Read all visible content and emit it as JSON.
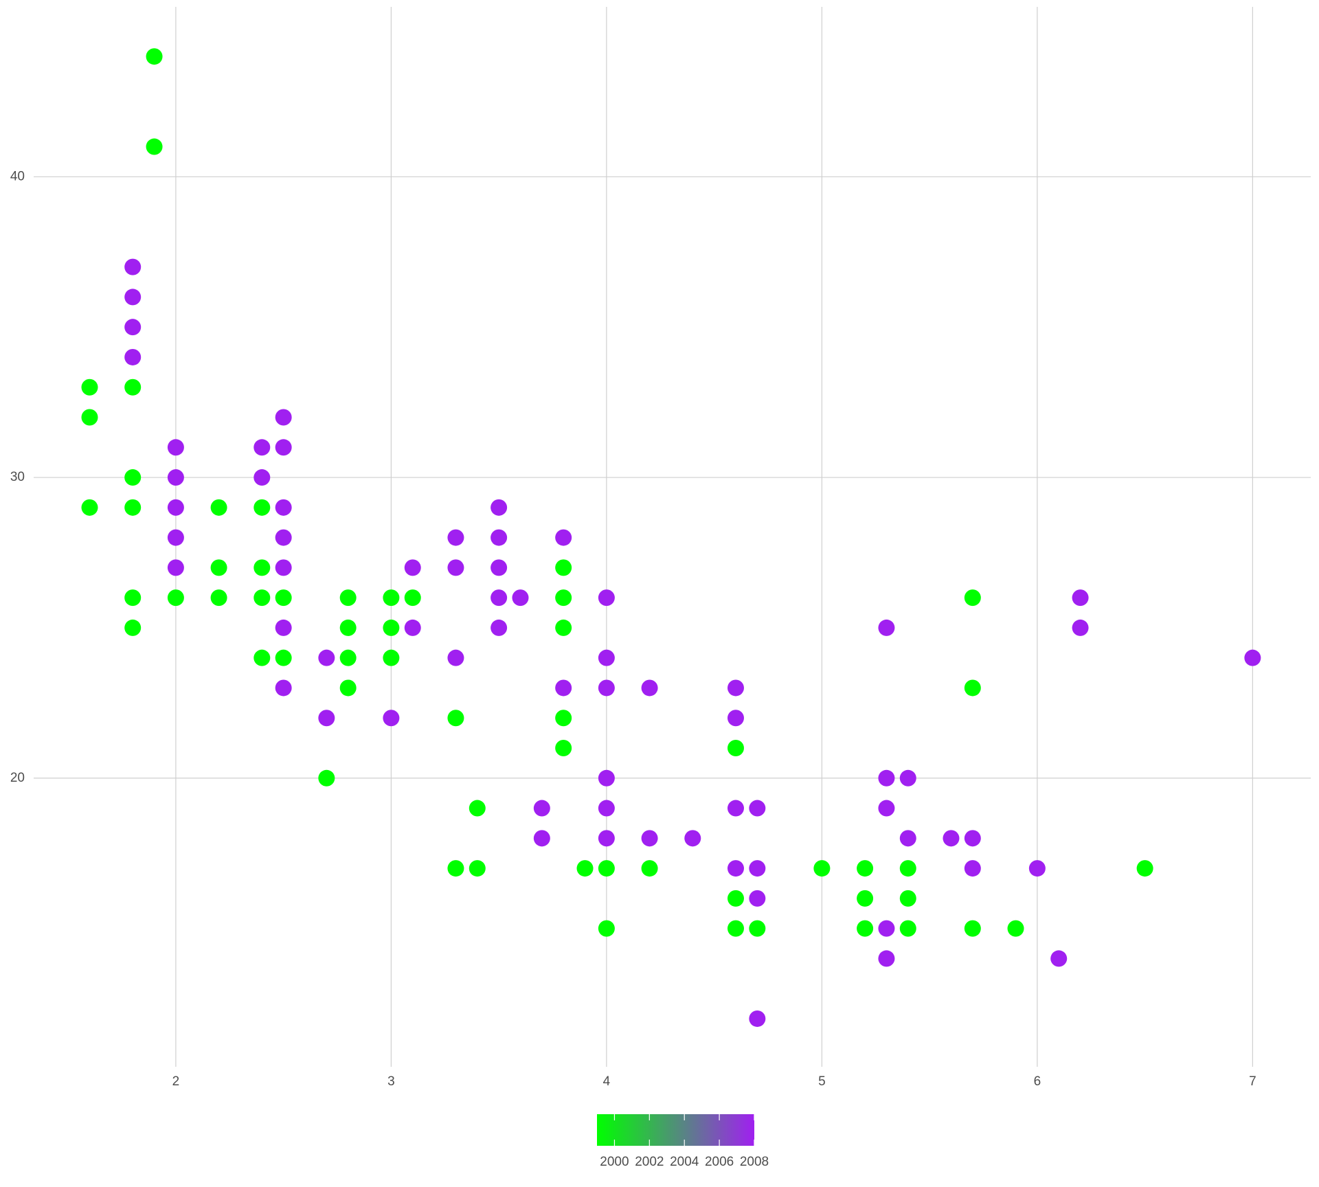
{
  "chart_data": {
    "type": "scatter",
    "x": [
      1.9,
      1.9,
      1.6,
      1.6,
      1.6,
      1.8,
      1.8,
      1.8,
      1.8,
      1.8,
      1.8,
      1.8,
      1.8,
      1.8,
      2.0,
      2.0,
      2.0,
      2.0,
      2.0,
      2.0,
      2.2,
      2.2,
      2.2,
      2.4,
      2.4,
      2.4,
      2.4,
      2.4,
      2.4,
      2.5,
      2.5,
      2.5,
      2.5,
      2.5,
      2.5,
      2.5,
      2.5,
      2.5,
      2.7,
      2.7,
      2.7,
      2.8,
      2.8,
      2.8,
      2.8,
      3.0,
      3.0,
      3.0,
      3.0,
      3.1,
      3.1,
      3.1,
      3.3,
      3.3,
      3.3,
      3.3,
      3.3,
      3.4,
      3.4,
      3.5,
      3.5,
      3.5,
      3.5,
      3.5,
      3.6,
      3.7,
      3.7,
      3.8,
      3.8,
      3.8,
      3.8,
      3.8,
      3.8,
      3.8,
      3.9,
      4.0,
      4.0,
      4.0,
      4.0,
      4.0,
      4.0,
      4.0,
      4.0,
      4.2,
      4.2,
      4.2,
      4.4,
      4.6,
      4.6,
      4.6,
      4.6,
      4.6,
      4.6,
      4.6,
      4.7,
      4.7,
      4.7,
      4.7,
      4.7,
      5.0,
      5.2,
      5.2,
      5.2,
      5.3,
      5.3,
      5.3,
      5.3,
      5.3,
      5.4,
      5.4,
      5.4,
      5.4,
      5.4,
      5.6,
      5.7,
      5.7,
      5.7,
      5.7,
      5.7,
      5.9,
      6.0,
      6.1,
      6.2,
      6.2,
      6.5,
      7.0
    ],
    "values": [
      44,
      41,
      33,
      32,
      29,
      33,
      30,
      29,
      26,
      25,
      37,
      36,
      35,
      34,
      31,
      30,
      29,
      28,
      27,
      26,
      29,
      27,
      26,
      31,
      30,
      29,
      27,
      26,
      24,
      32,
      31,
      29,
      28,
      27,
      25,
      23,
      26,
      24,
      24,
      22,
      20,
      26,
      25,
      24,
      23,
      26,
      25,
      24,
      22,
      27,
      25,
      26,
      28,
      27,
      24,
      22,
      17,
      19,
      17,
      29,
      28,
      27,
      26,
      25,
      26,
      19,
      18,
      28,
      23,
      27,
      26,
      25,
      22,
      21,
      17,
      26,
      24,
      23,
      20,
      19,
      18,
      17,
      15,
      23,
      18,
      17,
      18,
      23,
      22,
      19,
      17,
      21,
      16,
      15,
      19,
      17,
      16,
      12,
      15,
      17,
      17,
      16,
      15,
      25,
      20,
      19,
      15,
      14,
      20,
      18,
      17,
      16,
      15,
      18,
      26,
      23,
      15,
      18,
      17,
      15,
      17,
      14,
      26,
      25,
      17,
      24
    ],
    "color_values": [
      1999,
      1999,
      1999,
      1999,
      1999,
      1999,
      1999,
      1999,
      1999,
      1999,
      2008,
      2008,
      2008,
      2008,
      2008,
      2008,
      2008,
      2008,
      2008,
      1999,
      1999,
      1999,
      1999,
      2008,
      2008,
      1999,
      1999,
      1999,
      1999,
      2008,
      2008,
      2008,
      2008,
      2008,
      2008,
      2008,
      1999,
      1999,
      2008,
      2008,
      1999,
      1999,
      1999,
      1999,
      1999,
      1999,
      1999,
      1999,
      2008,
      2008,
      2008,
      1999,
      2008,
      2008,
      2008,
      1999,
      1999,
      1999,
      1999,
      2008,
      2008,
      2008,
      2008,
      2008,
      2008,
      2008,
      2008,
      2008,
      2008,
      1999,
      1999,
      1999,
      1999,
      1999,
      1999,
      2008,
      2008,
      2008,
      2008,
      2008,
      2008,
      1999,
      1999,
      2008,
      2008,
      1999,
      2008,
      2008,
      2008,
      2008,
      2008,
      1999,
      1999,
      1999,
      2008,
      2008,
      2008,
      2008,
      1999,
      1999,
      1999,
      1999,
      1999,
      2008,
      2008,
      2008,
      2008,
      2008,
      2008,
      2008,
      1999,
      1999,
      1999,
      2008,
      1999,
      1999,
      1999,
      2008,
      2008,
      1999,
      2008,
      2008,
      2008,
      2008,
      1999,
      2008
    ],
    "xlim": [
      1.34,
      7.27
    ],
    "ylim": [
      10.4,
      45.65
    ],
    "xticks": [
      2,
      3,
      4,
      5,
      6,
      7
    ],
    "yticks": [
      20,
      30,
      40
    ],
    "grid": true,
    "colorbar": {
      "limits": [
        1999,
        2008
      ],
      "ticks": [
        2000,
        2002,
        2004,
        2006,
        2008
      ],
      "colors": [
        "#00ff00",
        "#a020f0"
      ]
    }
  }
}
